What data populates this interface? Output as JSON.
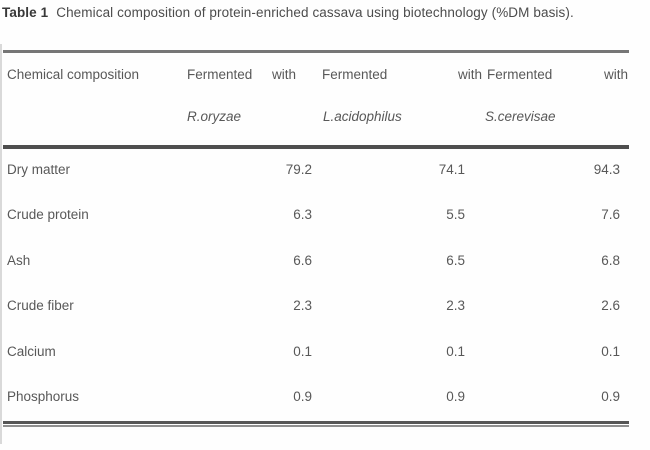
{
  "caption": {
    "label": "Table 1",
    "text": "Chemical composition of protein-enriched cassava using biotechnology (%DM basis)."
  },
  "table": {
    "header": {
      "row_label": "Chemical composition",
      "treatments": [
        {
          "prefix": "Fermented",
          "suffix": "with",
          "organism": "R.oryzae"
        },
        {
          "prefix": "Fermented",
          "suffix": "with",
          "organism": "L.acidophilus"
        },
        {
          "prefix": "Fermented",
          "suffix": "with",
          "organism": "S.cerevisae"
        }
      ]
    },
    "rows": [
      {
        "label": "Dry matter",
        "values": [
          "79.2",
          "74.1",
          "94.3"
        ]
      },
      {
        "label": "Crude protein",
        "values": [
          "6.3",
          "5.5",
          "7.6"
        ]
      },
      {
        "label": "Ash",
        "values": [
          "6.6",
          "6.5",
          "6.8"
        ]
      },
      {
        "label": "Crude fiber",
        "values": [
          "2.3",
          "2.3",
          "2.6"
        ]
      },
      {
        "label": "Calcium",
        "values": [
          "0.1",
          "0.1",
          "0.1"
        ]
      },
      {
        "label": "Phosphorus",
        "values": [
          "0.9",
          "0.9",
          "0.9"
        ]
      }
    ]
  },
  "colors": {
    "body_text": "#585858",
    "caption_label": "#383838",
    "caption_text": "#4c4c4c",
    "rule_top": "#767676",
    "rule_header": "#4e4e4e",
    "rule_bottom_dark": "#565656",
    "rule_bottom_light": "#8f8f8f",
    "background": "#fefefe"
  }
}
